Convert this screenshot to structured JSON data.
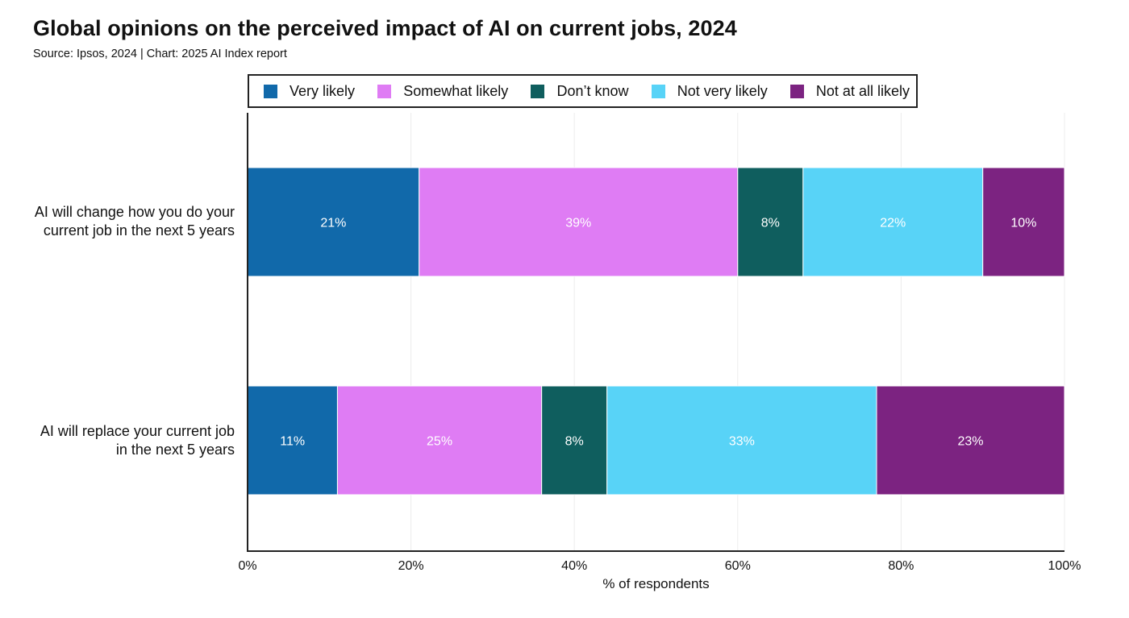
{
  "title": "Global opinions on the perceived impact of AI on current jobs, 2024",
  "subtitle": "Source: Ipsos, 2024 | Chart: 2025 AI Index report",
  "colors": {
    "very_likely": "#1169aa",
    "somewhat_likely": "#df7cf4",
    "dont_know": "#0f5e5e",
    "not_very_likely": "#58d3f7",
    "not_at_all_likely": "#7c2381"
  },
  "chart_data": {
    "type": "bar",
    "orientation": "horizontal",
    "stacked": true,
    "categories": [
      "AI will change how you do your current job in the next 5 years",
      "AI will replace your current job in the next 5 years"
    ],
    "series": [
      {
        "name": "Very likely",
        "color": "#1169aa",
        "values": [
          21,
          11
        ],
        "labels": [
          "21%",
          "11%"
        ]
      },
      {
        "name": "Somewhat likely",
        "color": "#df7cf4",
        "values": [
          39,
          25
        ],
        "labels": [
          "39%",
          "25%"
        ]
      },
      {
        "name": "Don’t know",
        "color": "#0f5e5e",
        "values": [
          8,
          8
        ],
        "labels": [
          "8%",
          "8%"
        ]
      },
      {
        "name": "Not very likely",
        "color": "#58d3f7",
        "values": [
          22,
          33
        ],
        "labels": [
          "22%",
          "33%"
        ]
      },
      {
        "name": "Not at all likely",
        "color": "#7c2381",
        "values": [
          10,
          23
        ],
        "labels": [
          "10%",
          "23%"
        ]
      }
    ],
    "xlabel": "% of respondents",
    "ylabel": "",
    "xlim": [
      0,
      100
    ],
    "xticks": [
      0,
      20,
      40,
      60,
      80,
      100
    ],
    "xtick_labels": [
      "0%",
      "20%",
      "40%",
      "60%",
      "80%",
      "100%"
    ],
    "grid": true,
    "legend_position": "top"
  },
  "category_label_lines": [
    [
      "AI will change how you do your",
      "current job in the next 5 years"
    ],
    [
      "AI will replace your current job",
      "in the next 5 years"
    ]
  ]
}
